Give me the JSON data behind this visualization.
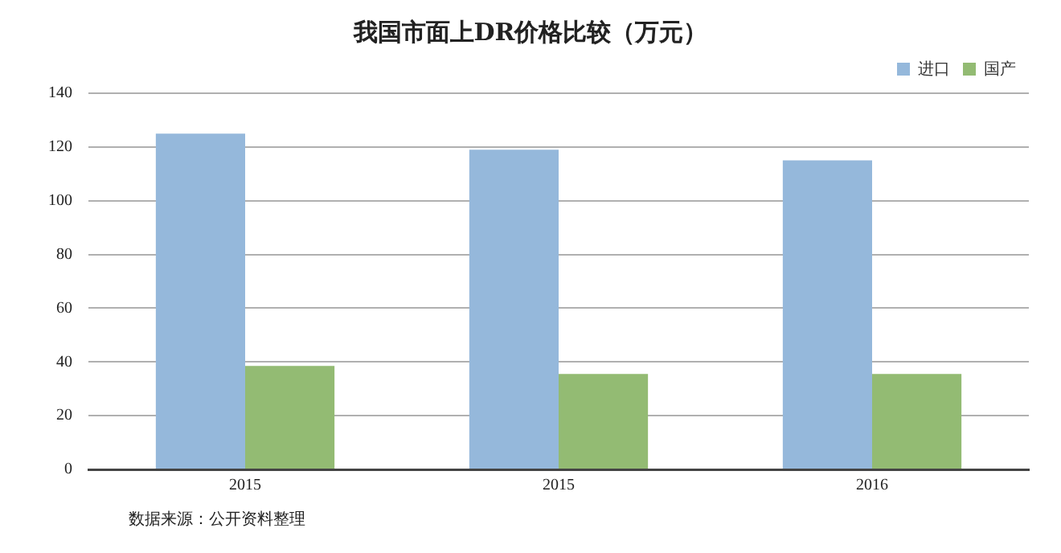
{
  "chart_data": {
    "type": "bar",
    "title": "我国市面上DR价格比较（万元）",
    "categories": [
      "2015",
      "2015",
      "2016"
    ],
    "series": [
      {
        "name": "进口",
        "color": "#95b8db",
        "values": [
          125,
          119,
          115
        ]
      },
      {
        "name": "国产",
        "color": "#93bb73",
        "values": [
          38.5,
          35.5,
          35.5
        ]
      }
    ],
    "ylim": [
      0,
      140
    ],
    "yticks": [
      0,
      20,
      40,
      60,
      80,
      100,
      120,
      140
    ],
    "grid": "y",
    "legend": "top right",
    "annotations": [
      "数据来源：公开资料整理"
    ]
  }
}
